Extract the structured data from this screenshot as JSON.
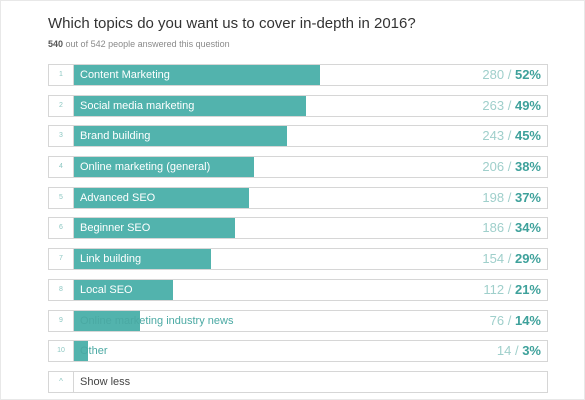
{
  "question": {
    "title": "Which topics do you want us to cover in-depth in 2016?",
    "answered_count": "540",
    "answered_rest": "out of 542 people answered this question"
  },
  "colors": {
    "bar": "#52b3ad",
    "percent": "#3ea19b",
    "count": "#9fcfcb"
  },
  "answers": [
    {
      "rank": "1",
      "label": "Content Marketing",
      "count": "280",
      "percent": "52%",
      "value": 52
    },
    {
      "rank": "2",
      "label": "Social media marketing",
      "count": "263",
      "percent": "49%",
      "value": 49
    },
    {
      "rank": "3",
      "label": "Brand building",
      "count": "243",
      "percent": "45%",
      "value": 45
    },
    {
      "rank": "4",
      "label": "Online marketing (general)",
      "count": "206",
      "percent": "38%",
      "value": 38
    },
    {
      "rank": "5",
      "label": "Advanced SEO",
      "count": "198",
      "percent": "37%",
      "value": 37
    },
    {
      "rank": "6",
      "label": "Beginner SEO",
      "count": "186",
      "percent": "34%",
      "value": 34
    },
    {
      "rank": "7",
      "label": "Link building",
      "count": "154",
      "percent": "29%",
      "value": 29
    },
    {
      "rank": "8",
      "label": "Local SEO",
      "count": "112",
      "percent": "21%",
      "value": 21
    },
    {
      "rank": "9",
      "label": "Online marketing industry news",
      "count": "76",
      "percent": "14%",
      "value": 14
    },
    {
      "rank": "10",
      "label": "Other",
      "count": "14",
      "percent": "3%",
      "value": 3
    }
  ],
  "show_less": {
    "caret": "^",
    "label": "Show less"
  }
}
